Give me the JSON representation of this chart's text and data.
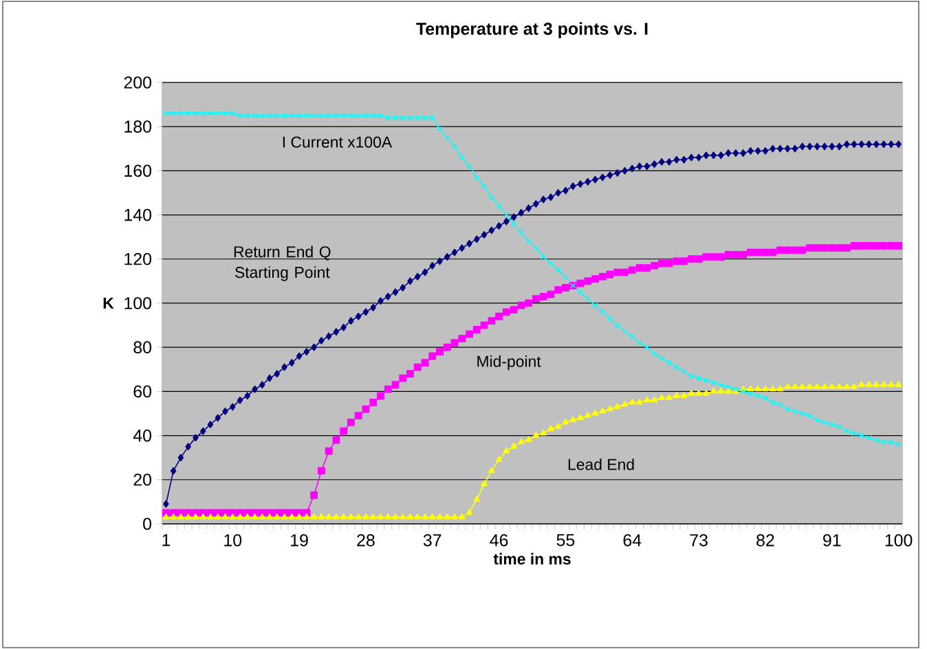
{
  "chart_data": {
    "type": "line",
    "title": "Temperature at 3 points vs. I",
    "xlabel": "time in ms",
    "ylabel": "K",
    "categories": [
      "1",
      null,
      null,
      null,
      null,
      null,
      null,
      null,
      null,
      "10",
      null,
      null,
      null,
      null,
      null,
      null,
      null,
      null,
      "19",
      null,
      null,
      null,
      null,
      null,
      null,
      null,
      null,
      "28",
      null,
      null,
      null,
      null,
      null,
      null,
      null,
      null,
      "37",
      null,
      null,
      null,
      null,
      null,
      null,
      null,
      null,
      "46",
      null,
      null,
      null,
      null,
      null,
      null,
      null,
      null,
      "55",
      null,
      null,
      null,
      null,
      null,
      null,
      null,
      null,
      "64",
      null,
      null,
      null,
      null,
      null,
      null,
      null,
      null,
      "73",
      null,
      null,
      null,
      null,
      null,
      null,
      null,
      null,
      "82",
      null,
      null,
      null,
      null,
      null,
      null,
      null,
      null,
      "91",
      null,
      null,
      null,
      null,
      null,
      null,
      null,
      null,
      "100"
    ],
    "series": [
      {
        "name": "Return End Q Starting Point",
        "color": "#000080",
        "marker": "diamond",
        "values": [
          9,
          24,
          30,
          35,
          39,
          42,
          45,
          48,
          51,
          53,
          56,
          58,
          61,
          63,
          66,
          68,
          71,
          73,
          76,
          78,
          80,
          83,
          85,
          87,
          89,
          92,
          94,
          96,
          98,
          101,
          103,
          105,
          107,
          110,
          112,
          114,
          117,
          119,
          121,
          123,
          125,
          127,
          129,
          131,
          133,
          135,
          137,
          139,
          141,
          143,
          145,
          147,
          148,
          150,
          151,
          153,
          154,
          155,
          156,
          157,
          158,
          159,
          160,
          161,
          162,
          162,
          163,
          164,
          164,
          165,
          165,
          166,
          166,
          167,
          167,
          167,
          168,
          168,
          168,
          169,
          169,
          169,
          170,
          170,
          170,
          170,
          171,
          171,
          171,
          171,
          171,
          171,
          172,
          172,
          172,
          172,
          172,
          172,
          172,
          172
        ]
      },
      {
        "name": "Mid-point",
        "color": "#ff00ff",
        "marker": "square",
        "values": [
          5,
          5,
          5,
          5,
          5,
          5,
          5,
          5,
          5,
          5,
          5,
          5,
          5,
          5,
          5,
          5,
          5,
          5,
          5,
          5,
          13,
          24,
          33,
          38,
          42,
          46,
          49,
          52,
          55,
          58,
          61,
          63,
          66,
          68,
          71,
          73,
          76,
          78,
          80,
          82,
          84,
          86,
          88,
          90,
          92,
          94,
          96,
          97,
          99,
          100,
          102,
          103,
          104,
          106,
          107,
          108,
          109,
          110,
          111,
          112,
          113,
          114,
          114,
          115,
          116,
          116,
          117,
          118,
          118,
          119,
          119,
          120,
          120,
          121,
          121,
          121,
          122,
          122,
          122,
          123,
          123,
          123,
          123,
          124,
          124,
          124,
          124,
          125,
          125,
          125,
          125,
          125,
          125,
          126,
          126,
          126,
          126,
          126,
          126,
          126
        ]
      },
      {
        "name": "Lead End",
        "color": "#ffff00",
        "marker": "triangle",
        "values": [
          3,
          3,
          3,
          3,
          3,
          3,
          3,
          3,
          3,
          3,
          3,
          3,
          3,
          3,
          3,
          3,
          3,
          3,
          3,
          3,
          3,
          3,
          3,
          3,
          3,
          3,
          3,
          3,
          3,
          3,
          3,
          3,
          3,
          3,
          3,
          3,
          3,
          3,
          3,
          3,
          3,
          5,
          11,
          18,
          24,
          29,
          33,
          35,
          37,
          38,
          40,
          41,
          43,
          44,
          46,
          47,
          48,
          49,
          50,
          51,
          52,
          53,
          54,
          55,
          55,
          56,
          56,
          57,
          57,
          58,
          58,
          59,
          59,
          59,
          60,
          60,
          60,
          60,
          61,
          61,
          61,
          61,
          61,
          61,
          62,
          62,
          62,
          62,
          62,
          62,
          62,
          62,
          62,
          62,
          63,
          63,
          63,
          63,
          63,
          63
        ]
      },
      {
        "name": "I Current x100A",
        "color": "#00ffff",
        "marker": "cross",
        "values": [
          186,
          186,
          186,
          186,
          186,
          186,
          186,
          186,
          186,
          186,
          185,
          185,
          185,
          185,
          185,
          185,
          185,
          185,
          185,
          185,
          185,
          185,
          185,
          185,
          185,
          185,
          185,
          185,
          185,
          185,
          184,
          184,
          184,
          184,
          184,
          184,
          184,
          179,
          175,
          171,
          166,
          162,
          157,
          153,
          148,
          144,
          140,
          136,
          132,
          128,
          125,
          121,
          118,
          115,
          112,
          108,
          105,
          102,
          99,
          96,
          93,
          90,
          87,
          85,
          82,
          80,
          77,
          75,
          73,
          71,
          69,
          67,
          66,
          65,
          64,
          63,
          62,
          61,
          60,
          59,
          58,
          57,
          55,
          54,
          52,
          51,
          50,
          49,
          47,
          46,
          45,
          44,
          42,
          41,
          40,
          39,
          38,
          37,
          37,
          36
        ]
      }
    ],
    "ylim": [
      0,
      200
    ],
    "yticks": [
      0,
      20,
      40,
      60,
      80,
      100,
      120,
      140,
      160,
      180,
      200
    ],
    "grid": "y",
    "legend": false
  }
}
